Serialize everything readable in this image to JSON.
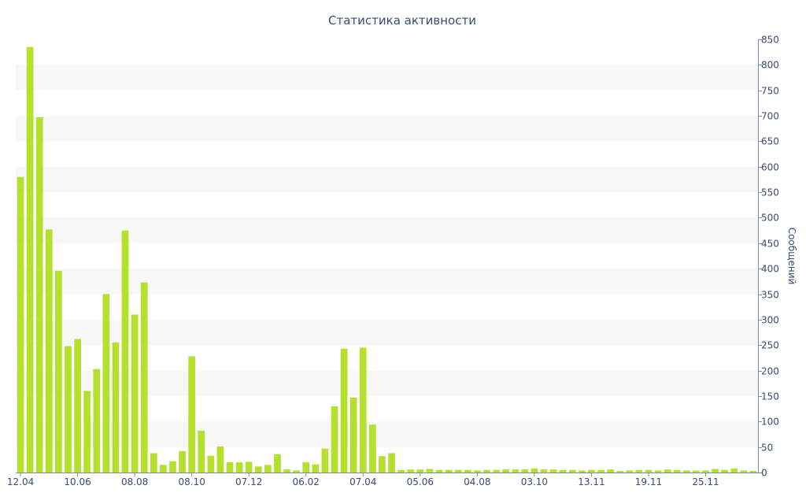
{
  "chart_data": {
    "type": "bar",
    "title": "Статистика активности",
    "xlabel": "",
    "ylabel": "Сообщений",
    "ylim": [
      0,
      850
    ],
    "ytick_step": 50,
    "y_axis_side": "right",
    "bar_color": "#b5e02e",
    "band_color": "#f7f7f7",
    "text_color": "#3a4b7a",
    "x_tick_labels": [
      {
        "index": 0,
        "label": "12.04"
      },
      {
        "index": 6,
        "label": "10.06"
      },
      {
        "index": 12,
        "label": "08.08"
      },
      {
        "index": 18,
        "label": "08.10"
      },
      {
        "index": 24,
        "label": "07.12"
      },
      {
        "index": 30,
        "label": "06.02"
      },
      {
        "index": 36,
        "label": "07.04"
      },
      {
        "index": 42,
        "label": "05.06"
      },
      {
        "index": 48,
        "label": "04.08"
      },
      {
        "index": 54,
        "label": "03.10"
      },
      {
        "index": 60,
        "label": "13.11"
      },
      {
        "index": 66,
        "label": "19.11"
      },
      {
        "index": 72,
        "label": "25.11"
      }
    ],
    "values": [
      580,
      835,
      697,
      477,
      396,
      248,
      262,
      160,
      203,
      350,
      255,
      475,
      310,
      373,
      38,
      15,
      22,
      42,
      228,
      82,
      33,
      51,
      20,
      20,
      21,
      12,
      15,
      36,
      6,
      4,
      20,
      16,
      47,
      130,
      243,
      147,
      245,
      94,
      32,
      38,
      5,
      6,
      6,
      7,
      5,
      5,
      5,
      5,
      4,
      5,
      5,
      6,
      6,
      6,
      8,
      6,
      6,
      5,
      5,
      4,
      5,
      5,
      6,
      3,
      4,
      5,
      5,
      4,
      6,
      5,
      4,
      4,
      4,
      7,
      5,
      8,
      4,
      3
    ]
  }
}
